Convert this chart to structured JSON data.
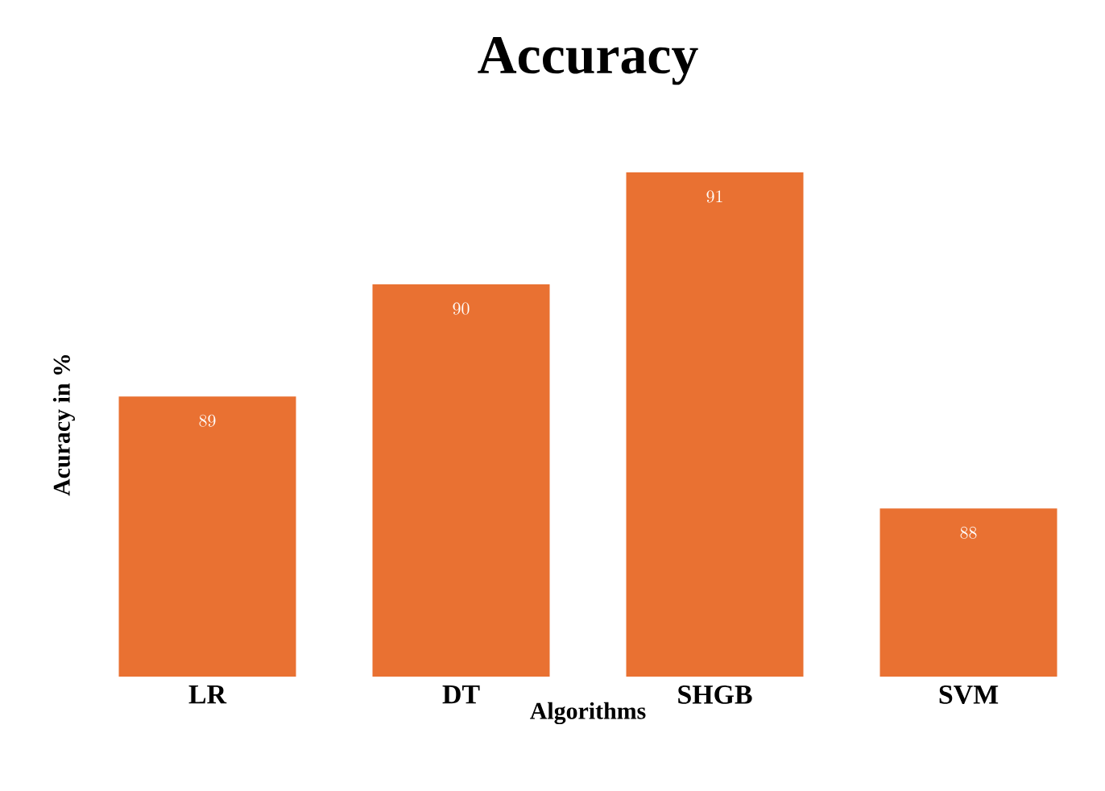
{
  "chart_data": {
    "type": "bar",
    "title": "Accuracy",
    "xlabel": "Algorithms",
    "ylabel": "Acuracy in %",
    "categories": [
      "LR",
      "DT",
      "SHGB",
      "SVM"
    ],
    "values": [
      89,
      90,
      91,
      88
    ],
    "color": "#e97132",
    "data_labels": true,
    "ylim": [
      86.5,
      91
    ]
  }
}
